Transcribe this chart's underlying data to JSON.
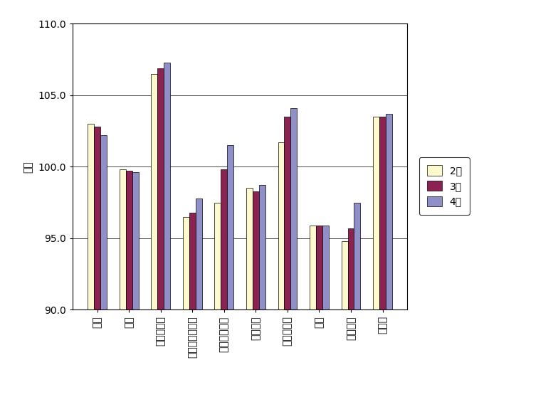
{
  "categories": [
    "食料",
    "住居",
    "光熱・水道",
    "家具・家事用品",
    "被服及び履物",
    "保健医療",
    "交通・通信",
    "教育",
    "教養娯楽",
    "諸雑費"
  ],
  "series": {
    "2月": [
      103.0,
      99.8,
      106.5,
      96.5,
      97.5,
      98.5,
      101.7,
      95.9,
      94.8,
      103.5
    ],
    "3月": [
      102.8,
      99.7,
      106.9,
      96.8,
      99.8,
      98.3,
      103.5,
      95.9,
      95.7,
      103.5
    ],
    "4月": [
      102.2,
      99.6,
      107.3,
      97.8,
      101.5,
      98.7,
      104.1,
      95.9,
      97.5,
      103.7
    ]
  },
  "bar_colors": {
    "2月": "#FFFACD",
    "3月": "#8B2252",
    "4月": "#9090C8"
  },
  "ylabel": "指数",
  "ylim": [
    90.0,
    110.0
  ],
  "yticks": [
    90.0,
    95.0,
    100.0,
    105.0,
    110.0
  ],
  "legend_labels": [
    "2月",
    "3月",
    "4月"
  ],
  "bar_width": 0.2,
  "figsize": [
    7.84,
    5.58
  ],
  "dpi": 100
}
